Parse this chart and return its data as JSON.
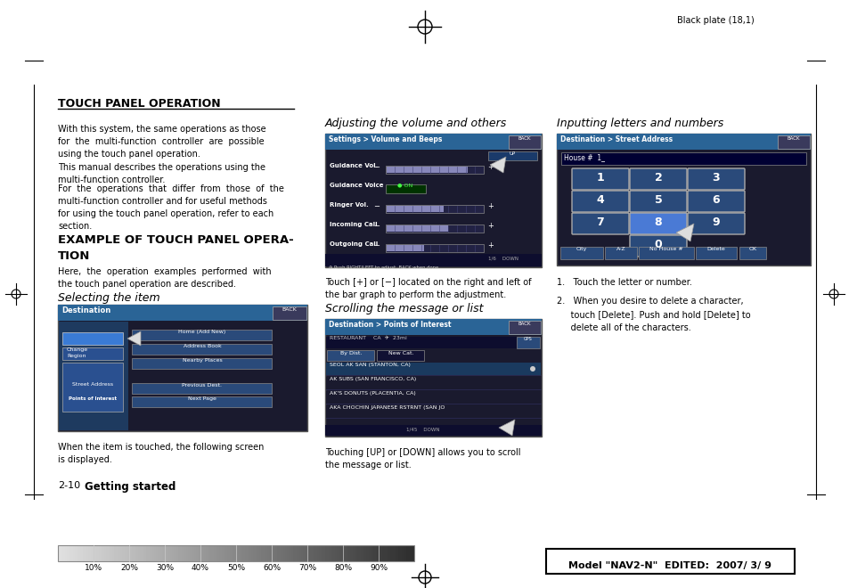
{
  "bg_color": "#ffffff",
  "page_title": "TOUCH PANEL OPERATION",
  "top_right_text": "Black plate (18,1)",
  "bottom_right_text": "Model \"NAV2-N\"  EDITED:  2007/ 3/ 9",
  "bottom_left_label": "2-10   Getting started",
  "gradient_ticks": [
    "10%",
    "20%",
    "30%",
    "40%",
    "50%",
    "60%",
    "70%",
    "80%",
    "90%"
  ],
  "section_title": "EXAMPLE OF TOUCH PANEL OPERA-\nTION",
  "col2_head": "Adjusting the volume and others",
  "col2_text1": "Touch [+] or [−] located on the right and left of\nthe bar graph to perform the adjustment.",
  "col2_head2": "Scrolling the message or list",
  "col2_text2": "Touching [UP] or [DOWN] allows you to scroll\nthe message or list.",
  "col3_head": "Inputting letters and numbers",
  "col3_text1": "1.   Touch the letter or number.",
  "col3_text2": "2.   When you desire to delete a character,\n     touch [Delete]. Push and hold [Delete] to\n     delete all of the characters.",
  "font_color": "#000000",
  "title_font_size": 9,
  "body_font_size": 7,
  "heading_font_size": 8.5
}
